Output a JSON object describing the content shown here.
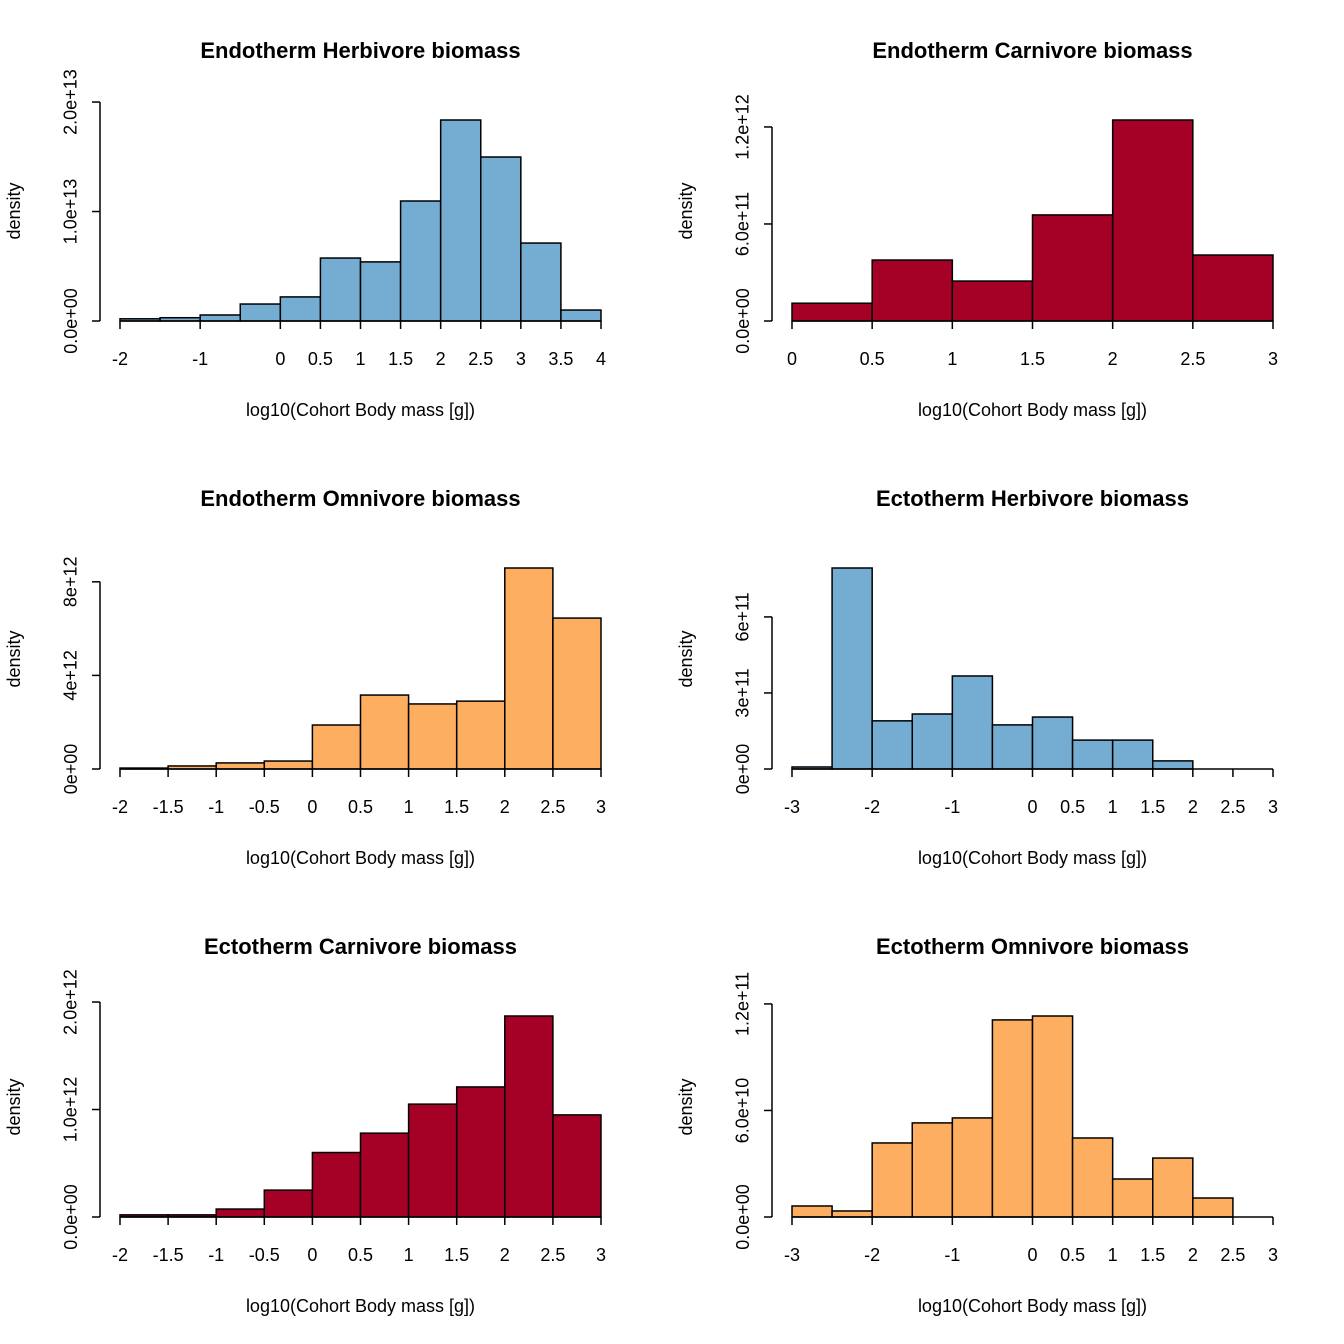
{
  "chart_data": [
    {
      "type": "histogram",
      "title": "Endotherm Herbivore biomass",
      "xlabel": "log10(Cohort Body mass [g])",
      "ylabel": "density",
      "color": "#74add1",
      "bins": [
        -2,
        -1.5,
        -1,
        -0.5,
        0,
        0.5,
        1,
        1.5,
        2,
        2.5,
        3,
        3.5,
        4
      ],
      "values": [
        200000000000.0,
        300000000000.0,
        550000000000.0,
        1550000000000.0,
        2200000000000.0,
        5750000000000.0,
        5400000000000.0,
        10960000000000.0,
        18360000000000.0,
        14980000000000.0,
        7120000000000.0,
        1000000000000.0
      ],
      "xlim": [
        -2,
        4
      ],
      "ylim": [
        0,
        18360000000000.0
      ],
      "xticks": [
        -2,
        -1,
        0,
        0.5,
        1,
        1.5,
        2,
        2.5,
        3,
        3.5,
        4
      ],
      "yticks": [
        {
          "value": 0,
          "label": "0.0e+00"
        },
        {
          "value": 10000000000000.0,
          "label": "1.0e+13"
        },
        {
          "value": 20000000000000.0,
          "label": "2.0e+13"
        }
      ]
    },
    {
      "type": "histogram",
      "title": "Endotherm Carnivore biomass",
      "xlabel": "log10(Cohort Body mass [g])",
      "ylabel": "density",
      "color": "#a50026",
      "bins": [
        0,
        0.5,
        1,
        1.5,
        2,
        2.5,
        3
      ],
      "values": [
        110000000000.0,
        377000000000.0,
        247000000000.0,
        656000000000.0,
        1243000000000.0,
        408000000000.0
      ],
      "xlim": [
        0,
        3
      ],
      "ylim": [
        0,
        1243000000000.0
      ],
      "xticks": [
        0,
        0.5,
        1,
        1.5,
        2,
        2.5,
        3
      ],
      "yticks": [
        {
          "value": 0,
          "label": "0.0e+00"
        },
        {
          "value": 600000000000.0,
          "label": "6.0e+11"
        },
        {
          "value": 1200000000000.0,
          "label": "1.2e+12"
        }
      ]
    },
    {
      "type": "histogram",
      "title": "Endotherm Omnivore biomass",
      "xlabel": "log10(Cohort Body mass [g])",
      "ylabel": "density",
      "color": "#fdae61",
      "bins": [
        -2,
        -1.5,
        -1,
        -0.5,
        0,
        0.5,
        1,
        1.5,
        2,
        2.5,
        3
      ],
      "values": [
        40000000000.0,
        130000000000.0,
        260000000000.0,
        340000000000.0,
        1880000000000.0,
        3160000000000.0,
        2780000000000.0,
        2900000000000.0,
        8590000000000.0,
        6450000000000.0
      ],
      "xlim": [
        -2,
        3
      ],
      "ylim": [
        0,
        8590000000000.0
      ],
      "xticks": [
        -2,
        -1.5,
        -1,
        -0.5,
        0,
        0.5,
        1,
        1.5,
        2,
        2.5,
        3
      ],
      "yticks": [
        {
          "value": 0,
          "label": "0e+00"
        },
        {
          "value": 4000000000000.0,
          "label": "4e+12"
        },
        {
          "value": 8000000000000.0,
          "label": "8e+12"
        }
      ]
    },
    {
      "type": "histogram",
      "title": "Ectotherm Herbivore biomass",
      "xlabel": "log10(Cohort Body mass [g])",
      "ylabel": "density",
      "color": "#74add1",
      "bins": [
        -3,
        -2.5,
        -2,
        -1.5,
        -1,
        -0.5,
        0,
        0.5,
        1,
        1.5,
        2,
        2.5,
        3
      ],
      "values": [
        8000000000.0,
        793000000000.0,
        190000000000.0,
        217000000000.0,
        367000000000.0,
        174000000000.0,
        205000000000.0,
        114000000000.0,
        114000000000.0,
        32000000000.0,
        0,
        0
      ],
      "xlim": [
        -3,
        3
      ],
      "ylim": [
        0,
        793000000000.0
      ],
      "xticks": [
        -3,
        -2,
        -1,
        0,
        0.5,
        1,
        1.5,
        2,
        2.5,
        3
      ],
      "yticks": [
        {
          "value": 0,
          "label": "0e+00"
        },
        {
          "value": 300000000000.0,
          "label": "3e+11"
        },
        {
          "value": 600000000000.0,
          "label": "6e+11"
        }
      ]
    },
    {
      "type": "histogram",
      "title": "Ectotherm Carnivore biomass",
      "xlabel": "log10(Cohort Body mass [g])",
      "ylabel": "density",
      "color": "#a50026",
      "bins": [
        -2,
        -1.5,
        -1,
        -0.5,
        0,
        0.5,
        1,
        1.5,
        2,
        2.5,
        3
      ],
      "values": [
        20000000000.0,
        20000000000.0,
        74000000000.0,
        250000000000.0,
        600000000000.0,
        780000000000.0,
        1050000000000.0,
        1210000000000.0,
        1870000000000.0,
        950000000000.0
      ],
      "xlim": [
        -2,
        3
      ],
      "ylim": [
        0,
        1870000000000.0
      ],
      "xticks": [
        -2,
        -1.5,
        -1,
        -0.5,
        0,
        0.5,
        1,
        1.5,
        2,
        2.5,
        3
      ],
      "yticks": [
        {
          "value": 0,
          "label": "0.0e+00"
        },
        {
          "value": 1000000000000.0,
          "label": "1.0e+12"
        },
        {
          "value": 2000000000000.0,
          "label": "2.0e+12"
        }
      ]
    },
    {
      "type": "histogram",
      "title": "Ectotherm Omnivore biomass",
      "xlabel": "log10(Cohort Body mass [g])",
      "ylabel": "density",
      "color": "#fdae61",
      "bins": [
        -3,
        -2.5,
        -2,
        -1.5,
        -1,
        -0.5,
        0,
        0.5,
        1,
        1.5,
        2,
        2.5,
        3
      ],
      "values": [
        6200000000.0,
        3400000000.0,
        41700000000.0,
        53000000000.0,
        55800000000.0,
        111000000000.0,
        113200000000.0,
        44500000000.0,
        21400000000.0,
        33200000000.0,
        10700000000.0,
        0
      ],
      "xlim": [
        -3,
        3
      ],
      "ylim": [
        0,
        113200000000.0
      ],
      "xticks": [
        -3,
        -2,
        -1,
        0,
        0.5,
        1,
        1.5,
        2,
        2.5,
        3
      ],
      "yticks": [
        {
          "value": 0,
          "label": "0.0e+00"
        },
        {
          "value": 60000000000.0,
          "label": "6.0e+10"
        },
        {
          "value": 120000000000.0,
          "label": "1.2e+11"
        }
      ]
    }
  ]
}
